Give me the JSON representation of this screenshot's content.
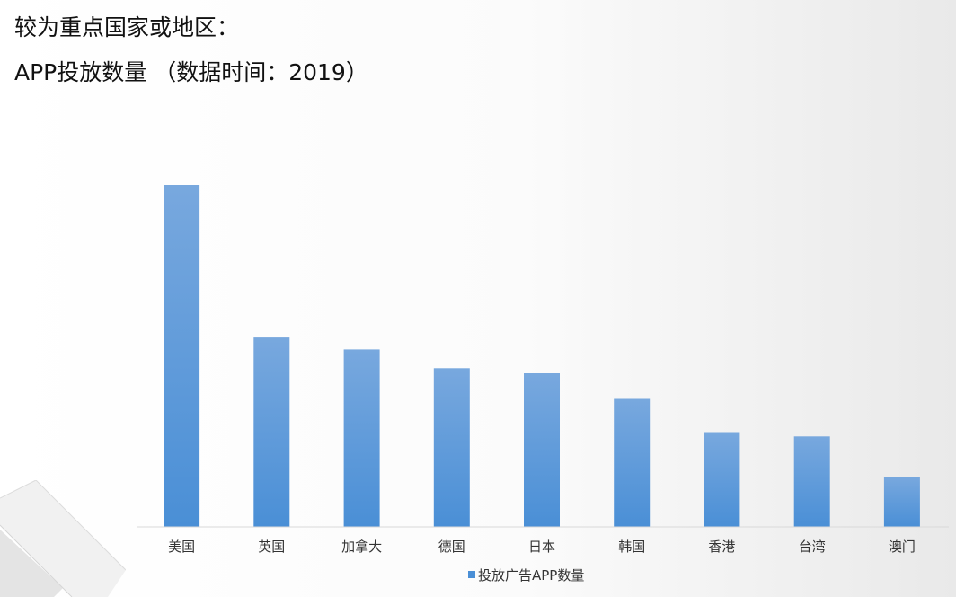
{
  "heading": "较为重点国家或地区：",
  "subheading": "APP投放数量 （数据时间：2019）",
  "colors": {
    "bar_top": "#78a8de",
    "bar_bottom": "#4a8fd6",
    "axis": "#d9d9d9"
  },
  "chart_data": {
    "type": "bar",
    "title": "",
    "xlabel": "",
    "ylabel": "",
    "categories": [
      "美国",
      "英国",
      "加拿大",
      "德国",
      "日本",
      "韩国",
      "香港",
      "台湾",
      "澳门"
    ],
    "series": [
      {
        "name": "投放广告APP数量",
        "values": [
          100,
          55.5,
          52,
          46.5,
          45,
          37.5,
          27.5,
          26.5,
          14.5
        ]
      }
    ],
    "ylim": [
      0,
      100
    ],
    "grid": false,
    "legend": "bottom"
  }
}
